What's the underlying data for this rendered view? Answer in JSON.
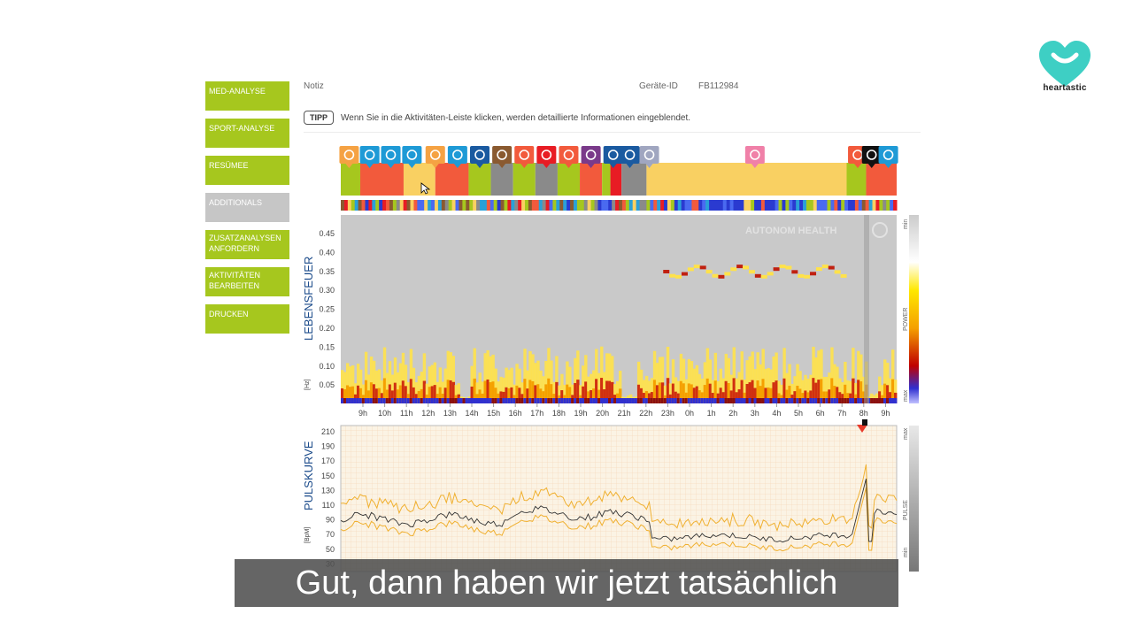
{
  "sidebar": {
    "items": [
      {
        "label": "MED-ANALYSE",
        "state": "active"
      },
      {
        "label": "SPORT-ANALYSE",
        "state": "active"
      },
      {
        "label": "RESÜMEE",
        "state": "active"
      },
      {
        "label": "ADDITIONALS",
        "state": "inactive"
      },
      {
        "label": "ZUSATZANALYSEN ANFORDERN",
        "state": "active"
      },
      {
        "label": "AKTIVITÄTEN BEARBEITEN",
        "state": "active"
      },
      {
        "label": "DRUCKEN",
        "state": "active"
      }
    ]
  },
  "brand": {
    "name": "heartastic",
    "color": "#3ecfc4"
  },
  "header": {
    "note_label": "Notiz",
    "device_label": "Geräte-ID",
    "device_id": "FB112984"
  },
  "tip": {
    "badge": "TIPP",
    "text": "Wenn Sie in die Aktivitäten-Leiste klicken, werden detaillierte Informationen eingeblendet."
  },
  "lebensfeuer": {
    "label": "LEBENSFEUER",
    "unit": "[Hz]",
    "y_ticks": [
      "0.45",
      "0.40",
      "0.35",
      "0.30",
      "0.25",
      "0.20",
      "0.15",
      "0.10",
      "0.05"
    ],
    "x_ticks": [
      "9h",
      "10h",
      "11h",
      "12h",
      "13h",
      "14h",
      "15h",
      "16h",
      "17h",
      "18h",
      "19h",
      "20h",
      "21h",
      "22h",
      "23h",
      "0h",
      "1h",
      "2h",
      "3h",
      "4h",
      "5h",
      "6h",
      "7h",
      "8h",
      "9h"
    ],
    "watermark": "AUTONOM HEALTH",
    "colorbar_top": "min",
    "colorbar_mid": "POWER",
    "colorbar_bottom": "max"
  },
  "pulskurve": {
    "label": "PULSKURVE",
    "unit": "[BpM]",
    "y_ticks": [
      "210",
      "190",
      "170",
      "150",
      "130",
      "110",
      "90",
      "70",
      "50",
      "30"
    ],
    "colorbar_top": "max",
    "colorbar_mid": "PULSE",
    "colorbar_bottom": "min"
  },
  "activity_bar": {
    "segments": [
      {
        "from": 0.0,
        "to": 0.035,
        "color": "#a6c71e"
      },
      {
        "from": 0.035,
        "to": 0.113,
        "color": "#f25a3c"
      },
      {
        "from": 0.113,
        "to": 0.17,
        "color": "#f9d062"
      },
      {
        "from": 0.17,
        "to": 0.23,
        "color": "#f25a3c"
      },
      {
        "from": 0.23,
        "to": 0.27,
        "color": "#a6c71e"
      },
      {
        "from": 0.27,
        "to": 0.31,
        "color": "#8a8a8a"
      },
      {
        "from": 0.31,
        "to": 0.35,
        "color": "#a6c71e"
      },
      {
        "from": 0.35,
        "to": 0.39,
        "color": "#8a8a8a"
      },
      {
        "from": 0.39,
        "to": 0.43,
        "color": "#a6c71e"
      },
      {
        "from": 0.43,
        "to": 0.47,
        "color": "#f25a3c"
      },
      {
        "from": 0.47,
        "to": 0.485,
        "color": "#a6c71e"
      },
      {
        "from": 0.485,
        "to": 0.505,
        "color": "#e81c24"
      },
      {
        "from": 0.505,
        "to": 0.55,
        "color": "#8a8a8a"
      },
      {
        "from": 0.55,
        "to": 0.91,
        "color": "#f9d062"
      },
      {
        "from": 0.91,
        "to": 0.945,
        "color": "#a6c71e"
      },
      {
        "from": 0.945,
        "to": 1.0,
        "color": "#f25a3c"
      }
    ],
    "icons": [
      {
        "pos": 0.015,
        "type": "sun-icon",
        "color": "#f5a243"
      },
      {
        "pos": 0.052,
        "type": "brain-icon",
        "color": "#1e9ad6"
      },
      {
        "pos": 0.09,
        "type": "brain-icon",
        "color": "#1e9ad6"
      },
      {
        "pos": 0.128,
        "type": "brain-icon",
        "color": "#1e9ad6"
      },
      {
        "pos": 0.17,
        "type": "sun-icon",
        "color": "#f5a243"
      },
      {
        "pos": 0.21,
        "type": "brain-icon",
        "color": "#1e9ad6"
      },
      {
        "pos": 0.25,
        "type": "keyboard-icon",
        "color": "#1a5aa0"
      },
      {
        "pos": 0.29,
        "type": "hiking-icon",
        "color": "#8a5a30"
      },
      {
        "pos": 0.33,
        "type": "walking-icon",
        "color": "#f25a3c"
      },
      {
        "pos": 0.37,
        "type": "question-icon",
        "color": "#e81c24"
      },
      {
        "pos": 0.41,
        "type": "walking-icon",
        "color": "#f25a3c"
      },
      {
        "pos": 0.45,
        "type": "chevron-icon",
        "color": "#7a3a8a"
      },
      {
        "pos": 0.49,
        "type": "keyboard-icon",
        "color": "#1a5aa0"
      },
      {
        "pos": 0.52,
        "type": "keyboard-icon",
        "color": "#1a5aa0"
      },
      {
        "pos": 0.555,
        "type": "screen-icon",
        "color": "#a0a6c0"
      },
      {
        "pos": 0.745,
        "type": "bed-icon",
        "color": "#f080a8"
      },
      {
        "pos": 0.93,
        "type": "walking-icon",
        "color": "#f25a3c"
      },
      {
        "pos": 0.955,
        "type": "cross-circle-icon",
        "color": "#111111"
      },
      {
        "pos": 0.985,
        "type": "brain-icon",
        "color": "#1e9ad6"
      }
    ]
  },
  "subtitle": {
    "text": "Gut, dann haben wir jetzt tatsächlich"
  }
}
